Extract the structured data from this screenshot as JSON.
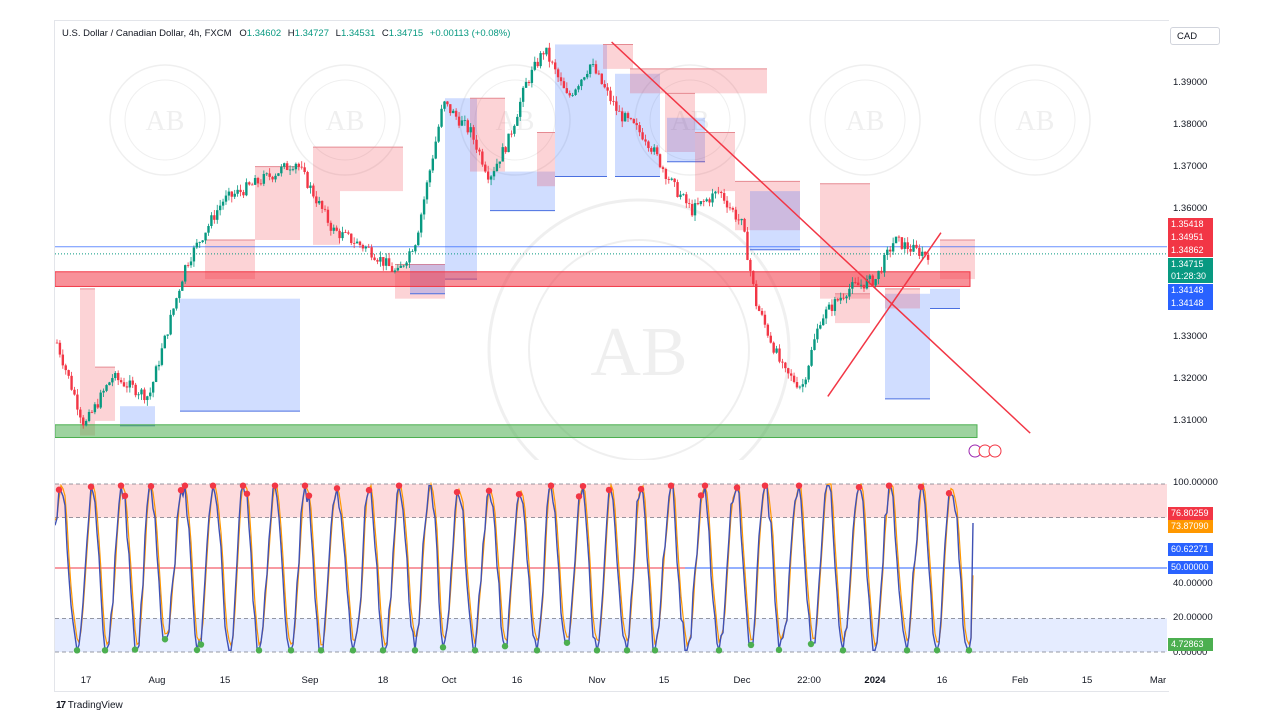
{
  "legend": {
    "symbol": "U.S. Dollar / Canadian Dollar, 4h, FXCM",
    "open_label": "O",
    "open": "1.34602",
    "high_label": "H",
    "high": "1.34727",
    "low_label": "L",
    "low": "1.34531",
    "close_label": "C",
    "close": "1.34715",
    "change": "+0.00113 (+0.08%)"
  },
  "currency_button": "CAD",
  "price_axis": {
    "ticks": [
      "1.39000",
      "1.38000",
      "1.37000",
      "1.36000",
      "1.33000",
      "1.32000",
      "1.31000"
    ],
    "badges": [
      {
        "label": "1.35418",
        "color": "#f23645"
      },
      {
        "label": "1.34951",
        "color": "#f23645"
      },
      {
        "label": "1.34862",
        "color": "#f23645"
      },
      {
        "label": "1.34715",
        "color": "#089981"
      },
      {
        "label": "01:28:30",
        "color": "#089981"
      },
      {
        "label": "1.34148",
        "color": "#2962ff"
      },
      {
        "label": "1.34148",
        "color": "#2962ff"
      }
    ]
  },
  "osc_axis": {
    "ticks": [
      "100.00000",
      "40.00000",
      "20.00000",
      "0.00000"
    ],
    "badges": [
      {
        "label": "76.80259",
        "color": "#f23645"
      },
      {
        "label": "73.87090",
        "color": "#ff9800"
      },
      {
        "label": "60.62271",
        "color": "#2962ff"
      },
      {
        "label": "50.00000",
        "color": "#2962ff"
      },
      {
        "label": "4.72863",
        "color": "#4caf50"
      }
    ]
  },
  "time_axis": [
    "17",
    "Aug",
    "15",
    "Sep",
    "18",
    "Oct",
    "16",
    "Nov",
    "15",
    "Dec",
    "22:00",
    "2024",
    "16",
    "Feb",
    "15",
    "Mar"
  ],
  "branding": {
    "tradingview": "TradingView"
  },
  "watermark": {
    "monogram": "AB",
    "ring_text": "ARABIAN BUSINESS ACADEMY"
  },
  "colors": {
    "up": "#089981",
    "down": "#f23645",
    "blue": "#2962ff",
    "orange": "#ff9800",
    "green_zone": "#4caf50"
  },
  "chart_data": {
    "type": "candlestick",
    "symbol": "USDCAD",
    "timeframe": "4h",
    "ylim": [
      1.305,
      1.395
    ],
    "price_path": [
      [
        0,
        1.329
      ],
      [
        0.03,
        1.312
      ],
      [
        0.06,
        1.322
      ],
      [
        0.1,
        1.318
      ],
      [
        0.14,
        1.345
      ],
      [
        0.18,
        1.358
      ],
      [
        0.22,
        1.362
      ],
      [
        0.26,
        1.366
      ],
      [
        0.3,
        1.352
      ],
      [
        0.34,
        1.348
      ],
      [
        0.37,
        1.343
      ],
      [
        0.39,
        1.35
      ],
      [
        0.42,
        1.378
      ],
      [
        0.45,
        1.372
      ],
      [
        0.47,
        1.363
      ],
      [
        0.49,
        1.37
      ],
      [
        0.51,
        1.382
      ],
      [
        0.53,
        1.389
      ],
      [
        0.555,
        1.379
      ],
      [
        0.58,
        1.386
      ],
      [
        0.61,
        1.376
      ],
      [
        0.64,
        1.371
      ],
      [
        0.67,
        1.361
      ],
      [
        0.69,
        1.356
      ],
      [
        0.72,
        1.36
      ],
      [
        0.745,
        1.353
      ],
      [
        0.76,
        1.337
      ],
      [
        0.79,
        1.323
      ],
      [
        0.81,
        1.32
      ],
      [
        0.83,
        1.334
      ],
      [
        0.86,
        1.34
      ],
      [
        0.89,
        1.342
      ],
      [
        0.91,
        1.35
      ],
      [
        0.93,
        1.348
      ],
      [
        0.95,
        1.347
      ]
    ],
    "horizontal_zones": [
      {
        "name": "resistance-red",
        "ymin": 1.3405,
        "ymax": 1.3435,
        "color": "#f23645"
      },
      {
        "name": "support-green",
        "ymin": 1.3096,
        "ymax": 1.3122,
        "color": "#4caf50"
      }
    ],
    "horizontal_lines": [
      1.34862,
      1.34715
    ],
    "trendlines": [
      {
        "x1": 0.605,
        "y1": 1.3905,
        "x2": 1.06,
        "y2": 1.3105,
        "color": "#f23645"
      },
      {
        "x1": 0.84,
        "y1": 1.318,
        "x2": 0.963,
        "y2": 1.3515,
        "color": "#f23645"
      }
    ],
    "oscillator": {
      "ylim": [
        0,
        100
      ],
      "upper_band": [
        80,
        100
      ],
      "lower_band": [
        0,
        20
      ],
      "midline": 50,
      "last_values": {
        "k": 76.80259,
        "d": 73.8709,
        "rsi": 60.62271,
        "low": 4.72863
      }
    }
  }
}
